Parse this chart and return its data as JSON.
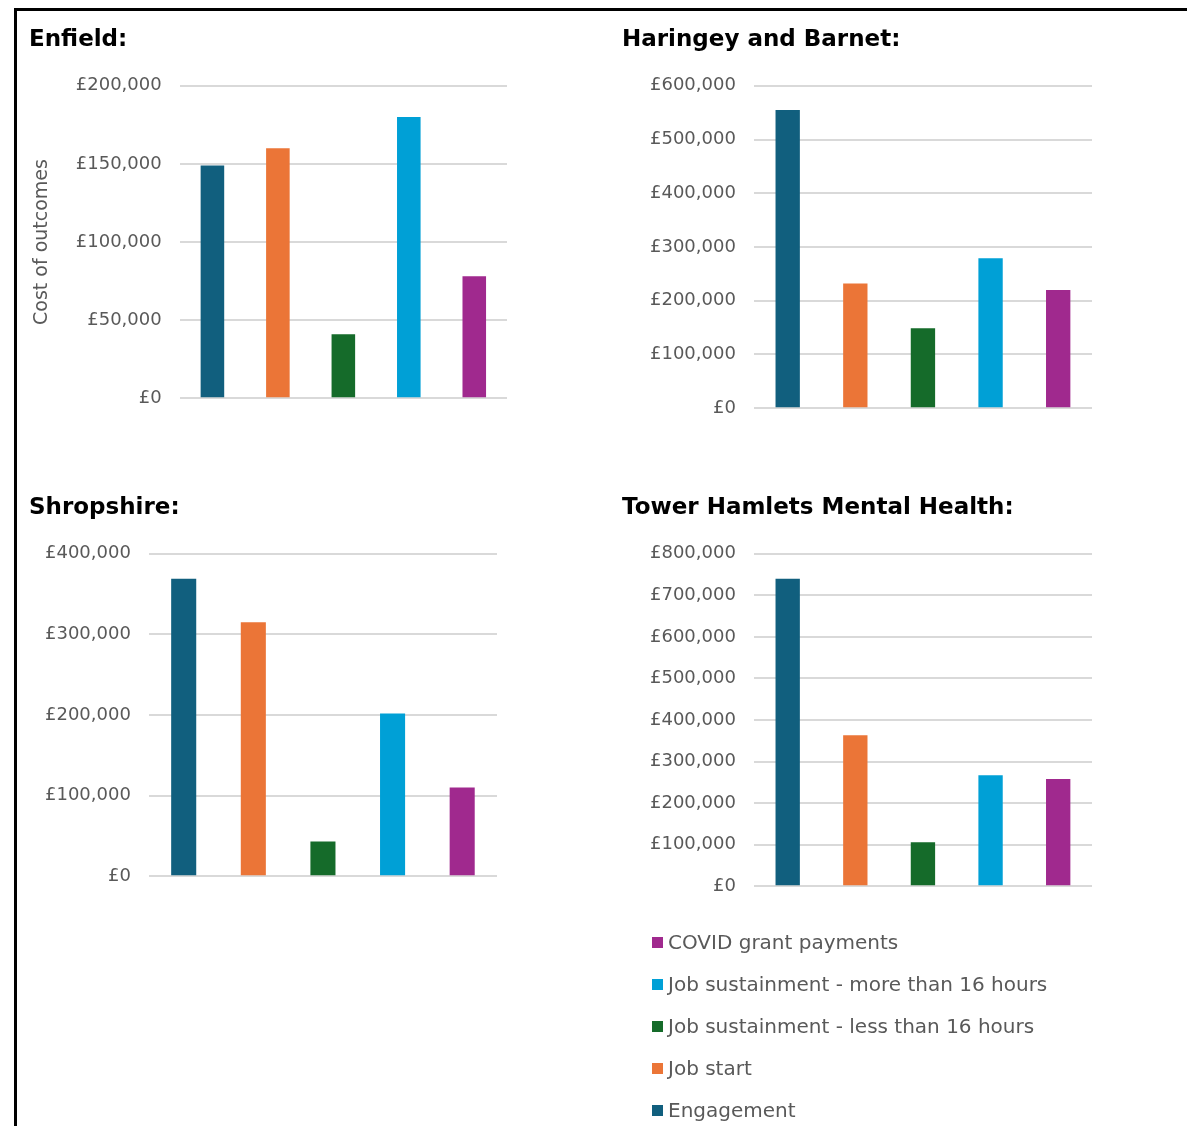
{
  "chart_data": [
    {
      "type": "bar",
      "title": "Enfield:",
      "ylabel": "Cost of outcomes",
      "categories": [
        null
      ],
      "series": [
        {
          "color": "#115f7e",
          "values": [
            149000
          ]
        },
        {
          "color": "#eb7537",
          "values": [
            160000
          ]
        },
        {
          "color": "#156b2a",
          "values": [
            41000
          ]
        },
        {
          "color": "#00a0d6",
          "values": [
            180000
          ]
        },
        {
          "color": "#a0298e",
          "values": [
            78000
          ]
        }
      ],
      "ylim": [
        0,
        200000
      ],
      "yticks": [
        {
          "value": 0,
          "label": "£0"
        },
        {
          "value": 50000,
          "label": "£50,000"
        },
        {
          "value": 100000,
          "label": "£100,000"
        },
        {
          "value": 150000,
          "label": "£150,000"
        },
        {
          "value": 200000,
          "label": "£200,000"
        }
      ],
      "grid": "y",
      "tick_labels": "y"
    },
    {
      "type": "bar",
      "title": "Haringey and Barnet:",
      "categories": [
        null
      ],
      "series": [
        {
          "color": "#115f7e",
          "values": [
            555000
          ]
        },
        {
          "color": "#eb7537",
          "values": [
            232000
          ]
        },
        {
          "color": "#156b2a",
          "values": [
            149000
          ]
        },
        {
          "color": "#00a0d6",
          "values": [
            279000
          ]
        },
        {
          "color": "#a0298e",
          "values": [
            220000
          ]
        }
      ],
      "ylim": [
        0,
        600000
      ],
      "yticks": [
        {
          "value": 0,
          "label": "£0"
        },
        {
          "value": 100000,
          "label": "£100,000"
        },
        {
          "value": 200000,
          "label": "£200,000"
        },
        {
          "value": 300000,
          "label": "£300,000"
        },
        {
          "value": 400000,
          "label": "£400,000"
        },
        {
          "value": 500000,
          "label": "£500,000"
        },
        {
          "value": 600000,
          "label": "£600,000"
        }
      ],
      "grid": "y",
      "tick_labels": "y"
    },
    {
      "type": "bar",
      "title": "Shropshire:",
      "categories": [
        null
      ],
      "series": [
        {
          "color": "#115f7e",
          "values": [
            369000
          ]
        },
        {
          "color": "#eb7537",
          "values": [
            315000
          ]
        },
        {
          "color": "#156b2a",
          "values": [
            43000
          ]
        },
        {
          "color": "#00a0d6",
          "values": [
            202000
          ]
        },
        {
          "color": "#a0298e",
          "values": [
            110000
          ]
        }
      ],
      "ylim": [
        0,
        400000
      ],
      "yticks": [
        {
          "value": 0,
          "label": "£0"
        },
        {
          "value": 100000,
          "label": "£100,000"
        },
        {
          "value": 200000,
          "label": "£200,000"
        },
        {
          "value": 300000,
          "label": "£300,000"
        },
        {
          "value": 400000,
          "label": "£400,000"
        }
      ],
      "grid": "y",
      "tick_labels": "y"
    },
    {
      "type": "bar",
      "title": "Tower Hamlets Mental Health:",
      "categories": [
        null
      ],
      "series": [
        {
          "name": "Engagement",
          "color": "#115f7e",
          "values": [
            740000
          ]
        },
        {
          "name": "Job start",
          "color": "#eb7537",
          "values": [
            363000
          ]
        },
        {
          "name": "Job sustainment - less than 16 hours",
          "color": "#156b2a",
          "values": [
            106000
          ]
        },
        {
          "name": "Job sustainment - more than 16 hours",
          "color": "#00a0d6",
          "values": [
            267000
          ]
        },
        {
          "name": "COVID grant payments",
          "color": "#a0298e",
          "values": [
            258000
          ]
        }
      ],
      "ylim": [
        0,
        800000
      ],
      "yticks": [
        {
          "value": 0,
          "label": "£0"
        },
        {
          "value": 100000,
          "label": "£100,000"
        },
        {
          "value": 200000,
          "label": "£200,000"
        },
        {
          "value": 300000,
          "label": "£300,000"
        },
        {
          "value": 400000,
          "label": "£400,000"
        },
        {
          "value": 500000,
          "label": "£500,000"
        },
        {
          "value": 600000,
          "label": "£600,000"
        },
        {
          "value": 700000,
          "label": "£700,000"
        },
        {
          "value": 800000,
          "label": "£800,000"
        }
      ],
      "grid": "y",
      "tick_labels": "y",
      "legend": "bottom"
    }
  ]
}
